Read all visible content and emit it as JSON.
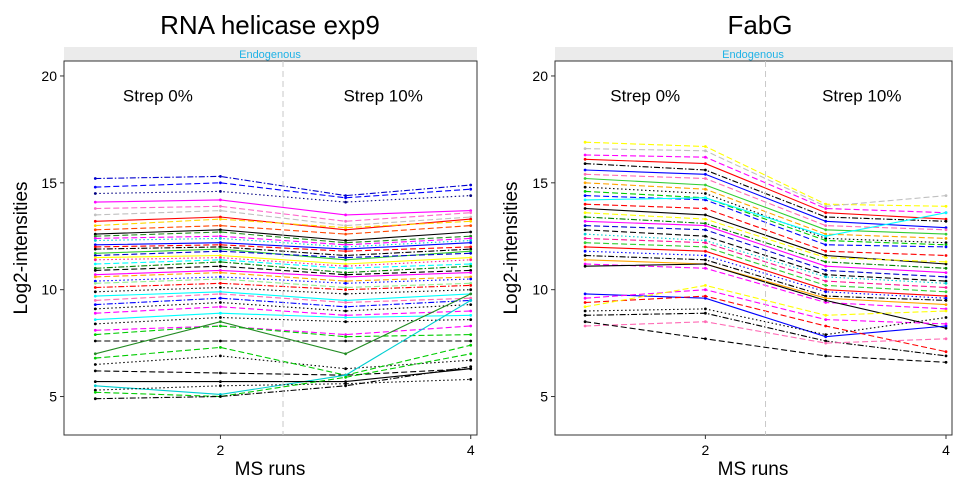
{
  "chart_data": [
    {
      "type": "line",
      "title": "RNA helicase exp9",
      "strip": "Endogenous",
      "xlabel": "MS runs",
      "ylabel": "Log2-intensities",
      "x_ticks": [
        2,
        4
      ],
      "y_ticks": [
        5,
        10,
        15,
        20
      ],
      "xlim": [
        0.75,
        4.05
      ],
      "ylim": [
        3.2,
        20.7
      ],
      "divider_x": 2.5,
      "annotations": [
        {
          "text": "Strep 0%",
          "x": 1.5,
          "y": 18.8
        },
        {
          "text": "Strep 10%",
          "x": 3.3,
          "y": 18.8
        }
      ],
      "grid": false,
      "series": [
        {
          "color": "#0000cc",
          "dash": "dashdot",
          "values": [
            15.2,
            15.3,
            14.4,
            14.9
          ]
        },
        {
          "color": "#0000ff",
          "dash": "dashed",
          "values": [
            14.8,
            15.0,
            14.3,
            14.7
          ]
        },
        {
          "color": "#000080",
          "dash": "dotted",
          "values": [
            14.5,
            14.6,
            14.1,
            14.4
          ]
        },
        {
          "color": "#ff00ff",
          "dash": "solid",
          "values": [
            14.1,
            14.2,
            13.5,
            13.7
          ]
        },
        {
          "color": "#ff66cc",
          "dash": "dashed",
          "values": [
            13.8,
            13.9,
            13.2,
            13.6
          ]
        },
        {
          "color": "#c0c0c0",
          "dash": "dashed",
          "values": [
            13.5,
            13.7,
            13.0,
            13.4
          ]
        },
        {
          "color": "#ff0000",
          "dash": "solid",
          "values": [
            13.2,
            13.4,
            12.8,
            13.3
          ]
        },
        {
          "color": "#ffd700",
          "dash": "dashed",
          "values": [
            13.0,
            13.3,
            12.9,
            13.2
          ]
        },
        {
          "color": "#ff4500",
          "dash": "dashed",
          "values": [
            12.8,
            13.0,
            12.6,
            13.0
          ]
        },
        {
          "color": "#000000",
          "dash": "solid",
          "values": [
            12.6,
            12.8,
            12.3,
            12.7
          ]
        },
        {
          "color": "#228b22",
          "dash": "dashed",
          "values": [
            12.5,
            12.7,
            12.2,
            12.5
          ]
        },
        {
          "color": "#ff00ff",
          "dash": "dashed",
          "values": [
            12.4,
            12.5,
            12.1,
            12.4
          ]
        },
        {
          "color": "#00ced1",
          "dash": "dotted",
          "values": [
            12.3,
            12.4,
            12.0,
            12.3
          ]
        },
        {
          "color": "#0000ff",
          "dash": "solid",
          "values": [
            12.1,
            12.2,
            11.9,
            12.2
          ]
        },
        {
          "color": "#ff0000",
          "dash": "dashed",
          "values": [
            12.0,
            12.1,
            11.8,
            12.0
          ]
        },
        {
          "color": "#000000",
          "dash": "dashdot",
          "values": [
            11.9,
            12.0,
            11.6,
            11.9
          ]
        },
        {
          "color": "#32cd32",
          "dash": "solid",
          "values": [
            11.7,
            11.9,
            11.4,
            11.8
          ]
        },
        {
          "color": "#0000cd",
          "dash": "dashed",
          "values": [
            11.6,
            11.8,
            11.5,
            11.7
          ]
        },
        {
          "color": "#ffff00",
          "dash": "solid",
          "values": [
            11.5,
            11.6,
            11.2,
            11.5
          ]
        },
        {
          "color": "#ff1493",
          "dash": "dotted",
          "values": [
            11.4,
            11.5,
            11.1,
            11.4
          ]
        },
        {
          "color": "#00ffff",
          "dash": "dashed",
          "values": [
            11.2,
            11.4,
            11.0,
            11.2
          ]
        },
        {
          "color": "#008000",
          "dash": "dashdot",
          "values": [
            11.0,
            11.3,
            10.8,
            11.1
          ]
        },
        {
          "color": "#000000",
          "dash": "dashed",
          "values": [
            10.9,
            11.1,
            10.7,
            10.9
          ]
        },
        {
          "color": "#ff00ff",
          "dash": "solid",
          "values": [
            10.7,
            10.9,
            10.6,
            10.8
          ]
        },
        {
          "color": "#ffa500",
          "dash": "dashed",
          "values": [
            10.6,
            10.8,
            10.4,
            10.6
          ]
        },
        {
          "color": "#0000ff",
          "dash": "dotted",
          "values": [
            10.4,
            10.6,
            10.3,
            10.5
          ]
        },
        {
          "color": "#90ee90",
          "dash": "dashed",
          "values": [
            10.3,
            10.5,
            10.1,
            10.3
          ]
        },
        {
          "color": "#ff0000",
          "dash": "dashdot",
          "values": [
            10.1,
            10.3,
            10.0,
            10.2
          ]
        },
        {
          "color": "#000000",
          "dash": "dotted",
          "values": [
            9.9,
            10.1,
            9.8,
            10.0
          ]
        },
        {
          "color": "#00ffff",
          "dash": "solid",
          "values": [
            9.7,
            9.9,
            9.5,
            9.8
          ]
        },
        {
          "color": "#ff69b4",
          "dash": "dashed",
          "values": [
            9.5,
            9.8,
            9.4,
            9.6
          ]
        },
        {
          "color": "#0000ff",
          "dash": "dashdot",
          "values": [
            9.3,
            9.6,
            9.2,
            9.5
          ]
        },
        {
          "color": "#000000",
          "dash": "dotted",
          "values": [
            9.1,
            9.4,
            9.0,
            9.3
          ]
        },
        {
          "color": "#ff00ff",
          "dash": "dashed",
          "values": [
            8.9,
            9.2,
            8.8,
            9.0
          ]
        },
        {
          "color": "#00ffff",
          "dash": "solid",
          "values": [
            8.6,
            8.9,
            8.7,
            8.8
          ]
        },
        {
          "color": "#000000",
          "dash": "dotted",
          "values": [
            8.4,
            8.7,
            8.5,
            8.6
          ]
        },
        {
          "color": "#ff00ff",
          "dash": "dashed",
          "values": [
            8.1,
            8.3,
            7.9,
            8.3
          ]
        },
        {
          "color": "#00cc00",
          "dash": "dashed",
          "values": [
            7.9,
            8.3,
            7.8,
            7.9
          ]
        },
        {
          "color": "#000000",
          "dash": "dashed",
          "values": [
            7.6,
            7.6,
            7.6,
            7.6
          ]
        },
        {
          "color": "#228b22",
          "dash": "solid",
          "values": [
            7.0,
            8.5,
            7.0,
            9.8
          ]
        },
        {
          "color": "#000000",
          "dash": "dotted",
          "values": [
            6.5,
            6.9,
            6.3,
            6.7
          ]
        },
        {
          "color": "#00cc00",
          "dash": "dashed",
          "values": [
            6.8,
            7.3,
            6.0,
            7.4
          ]
        },
        {
          "color": "#000000",
          "dash": "dashed",
          "values": [
            6.2,
            6.1,
            6.0,
            6.3
          ]
        },
        {
          "color": "#00ced1",
          "dash": "solid",
          "values": [
            5.5,
            5.1,
            6.0,
            9.5
          ]
        },
        {
          "color": "#000000",
          "dash": "solid",
          "values": [
            5.7,
            5.7,
            5.7,
            6.3
          ]
        },
        {
          "color": "#000000",
          "dash": "dotted",
          "values": [
            5.3,
            5.5,
            5.6,
            5.8
          ]
        },
        {
          "color": "#00cc00",
          "dash": "dashed",
          "values": [
            5.2,
            5.0,
            5.9,
            7.0
          ]
        },
        {
          "color": "#000000",
          "dash": "dashdot",
          "values": [
            4.9,
            5.0,
            5.5,
            6.4
          ]
        }
      ]
    },
    {
      "type": "line",
      "title": "FabG",
      "strip": "Endogenous",
      "xlabel": "MS runs",
      "ylabel": "Log2-intensities",
      "x_ticks": [
        2,
        4
      ],
      "y_ticks": [
        5,
        10,
        15,
        20
      ],
      "xlim": [
        0.75,
        4.05
      ],
      "ylim": [
        3.2,
        20.7
      ],
      "divider_x": 2.5,
      "annotations": [
        {
          "text": "Strep 0%",
          "x": 1.5,
          "y": 18.8
        },
        {
          "text": "Strep 10%",
          "x": 3.3,
          "y": 18.8
        }
      ],
      "grid": false,
      "series": [
        {
          "color": "#ffff00",
          "dash": "dashed",
          "values": [
            16.9,
            16.7,
            14.0,
            13.9
          ]
        },
        {
          "color": "#c0c0c0",
          "dash": "dashed",
          "values": [
            16.6,
            16.5,
            13.9,
            14.4
          ]
        },
        {
          "color": "#ff00ff",
          "dash": "dashed",
          "values": [
            16.3,
            16.2,
            13.8,
            13.6
          ]
        },
        {
          "color": "#ff0000",
          "dash": "solid",
          "values": [
            16.1,
            15.9,
            13.6,
            13.3
          ]
        },
        {
          "color": "#000000",
          "dash": "dashdot",
          "values": [
            15.9,
            15.6,
            13.4,
            13.2
          ]
        },
        {
          "color": "#0000ff",
          "dash": "solid",
          "values": [
            15.6,
            15.4,
            13.2,
            12.9
          ]
        },
        {
          "color": "#ff69b4",
          "dash": "dashed",
          "values": [
            15.4,
            15.2,
            13.0,
            12.8
          ]
        },
        {
          "color": "#32cd32",
          "dash": "solid",
          "values": [
            15.2,
            14.9,
            12.8,
            12.6
          ]
        },
        {
          "color": "#ffa500",
          "dash": "dashed",
          "values": [
            15.0,
            14.7,
            12.6,
            12.4
          ]
        },
        {
          "color": "#000000",
          "dash": "dotted",
          "values": [
            14.8,
            14.5,
            12.4,
            12.2
          ]
        },
        {
          "color": "#00cc00",
          "dash": "dashed",
          "values": [
            14.6,
            14.3,
            12.3,
            12.1
          ]
        },
        {
          "color": "#0000ff",
          "dash": "dashed",
          "values": [
            14.4,
            14.2,
            12.1,
            12.0
          ]
        },
        {
          "color": "#00ffff",
          "dash": "solid",
          "values": [
            14.2,
            14.3,
            12.5,
            13.6
          ]
        },
        {
          "color": "#ff0000",
          "dash": "dashed",
          "values": [
            14.0,
            13.8,
            11.8,
            11.6
          ]
        },
        {
          "color": "#000000",
          "dash": "solid",
          "values": [
            13.8,
            13.5,
            11.6,
            11.2
          ]
        },
        {
          "color": "#ffff00",
          "dash": "dashed",
          "values": [
            13.6,
            13.3,
            11.5,
            11.3
          ]
        },
        {
          "color": "#008000",
          "dash": "dashdot",
          "values": [
            13.4,
            13.1,
            11.3,
            11.0
          ]
        },
        {
          "color": "#ff00ff",
          "dash": "solid",
          "values": [
            13.2,
            13.0,
            11.1,
            10.8
          ]
        },
        {
          "color": "#0000cd",
          "dash": "dashed",
          "values": [
            13.0,
            12.8,
            10.9,
            10.6
          ]
        },
        {
          "color": "#000000",
          "dash": "dashed",
          "values": [
            12.8,
            12.5,
            10.7,
            10.4
          ]
        },
        {
          "color": "#00ced1",
          "dash": "dotted",
          "values": [
            12.6,
            12.3,
            10.6,
            10.3
          ]
        },
        {
          "color": "#ff1493",
          "dash": "dashed",
          "values": [
            12.4,
            12.2,
            10.4,
            10.1
          ]
        },
        {
          "color": "#32cd32",
          "dash": "dashed",
          "values": [
            12.2,
            12.0,
            10.2,
            9.9
          ]
        },
        {
          "color": "#ff0000",
          "dash": "solid",
          "values": [
            12.0,
            11.8,
            10.0,
            9.7
          ]
        },
        {
          "color": "#0000ff",
          "dash": "dotted",
          "values": [
            11.8,
            11.6,
            9.9,
            9.6
          ]
        },
        {
          "color": "#000000",
          "dash": "dashdot",
          "values": [
            11.6,
            11.4,
            9.7,
            9.5
          ]
        },
        {
          "color": "#ffa500",
          "dash": "solid",
          "values": [
            11.4,
            11.2,
            9.6,
            9.3
          ]
        },
        {
          "color": "#ff00ff",
          "dash": "dashed",
          "values": [
            11.2,
            11.0,
            9.4,
            9.1
          ]
        },
        {
          "color": "#000000",
          "dash": "solid",
          "values": [
            11.1,
            11.2,
            9.5,
            8.2
          ]
        },
        {
          "color": "#0000ff",
          "dash": "solid",
          "values": [
            9.8,
            9.6,
            7.8,
            8.3
          ]
        },
        {
          "color": "#ff00ff",
          "dash": "dashed",
          "values": [
            9.6,
            10.0,
            8.6,
            8.4
          ]
        },
        {
          "color": "#ff0000",
          "dash": "dashed",
          "values": [
            9.4,
            9.7,
            8.3,
            7.1
          ]
        },
        {
          "color": "#ffff00",
          "dash": "dashed",
          "values": [
            9.2,
            10.2,
            8.8,
            9.0
          ]
        },
        {
          "color": "#000000",
          "dash": "dotted",
          "values": [
            9.0,
            9.1,
            7.9,
            8.7
          ]
        },
        {
          "color": "#000000",
          "dash": "dashdot",
          "values": [
            8.8,
            8.9,
            7.6,
            6.9
          ]
        },
        {
          "color": "#ff69b4",
          "dash": "dashed",
          "values": [
            8.3,
            8.5,
            7.5,
            7.7
          ]
        },
        {
          "color": "#000000",
          "dash": "dashed",
          "values": [
            8.5,
            7.7,
            6.9,
            6.6
          ]
        }
      ]
    }
  ]
}
